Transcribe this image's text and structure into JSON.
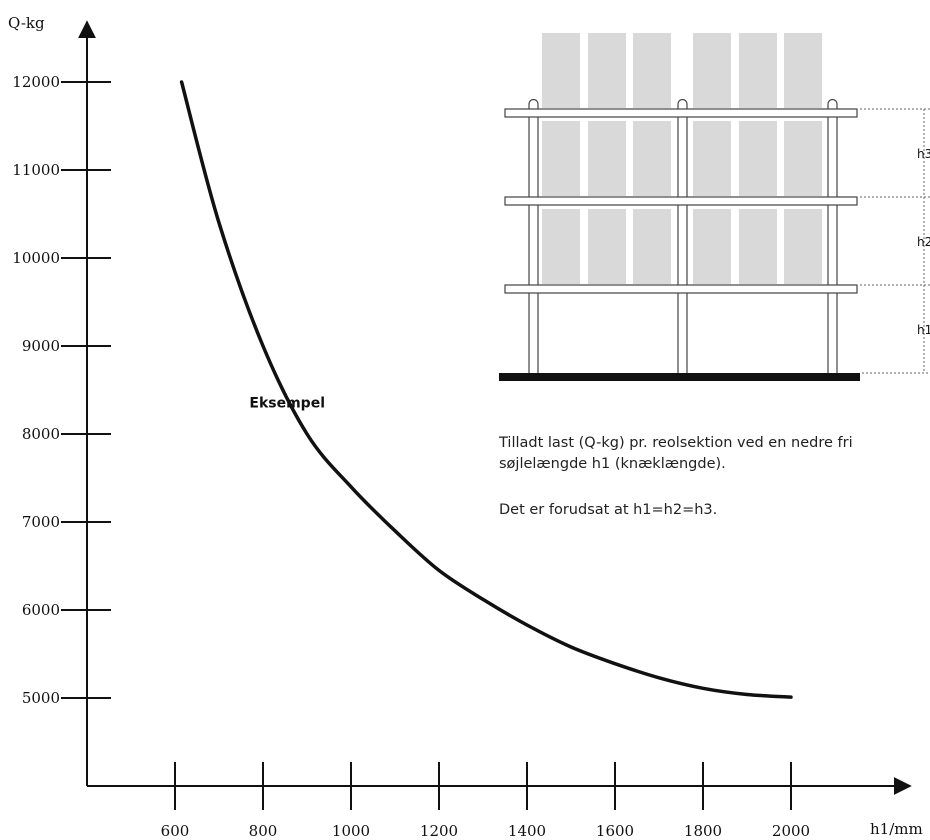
{
  "chart_data": {
    "type": "line",
    "ylabel": "Q-kg",
    "xlabel": "h1/mm",
    "xlim": [
      500,
      2250
    ],
    "ylim": [
      4000,
      13000
    ],
    "x_ticks": [
      600,
      800,
      1000,
      1200,
      1400,
      1600,
      1800,
      2000
    ],
    "y_ticks": [
      5000,
      6000,
      7000,
      8000,
      9000,
      10000,
      11000,
      12000
    ],
    "series": [
      {
        "x": [
          615,
          700,
          800,
          900,
          1000,
          1100,
          1200,
          1300,
          1400,
          1500,
          1600,
          1700,
          1800,
          1900,
          2000
        ],
        "y": [
          12000,
          10400,
          9000,
          8000,
          7400,
          6900,
          6450,
          6120,
          5830,
          5580,
          5390,
          5230,
          5110,
          5040,
          5010
        ]
      }
    ],
    "annotations": [
      {
        "text": "Eksempel",
        "x": 855,
        "y": 8300
      }
    ],
    "grid": false
  },
  "diagram": {
    "height_labels": [
      "h3",
      "h2",
      "h1"
    ]
  },
  "notes": {
    "text1": "Tilladt last (Q-kg) pr. reolsektion ved en nedre fri søjlelængde h1 (knæklængde).",
    "text2": "Det er forudsat at h1=h2=h3."
  }
}
